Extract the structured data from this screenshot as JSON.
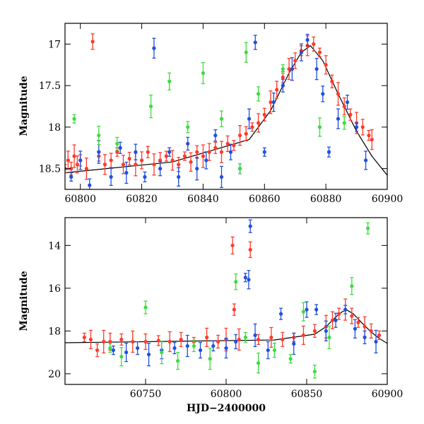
{
  "chart_data": [
    {
      "type": "scatter",
      "title": "",
      "xlabel": "",
      "ylabel": "Magnitude",
      "xlim": [
        60795,
        60900
      ],
      "ylim": [
        18.75,
        16.75
      ],
      "y_inverted": true,
      "x_ticks": [
        60800,
        60820,
        60840,
        60860,
        60880,
        60900
      ],
      "x_tick_labels": [
        "60800",
        "60820",
        "60840",
        "60860",
        "60880",
        "60900"
      ],
      "y_ticks": [
        17,
        17.5,
        18,
        18.5
      ],
      "y_tick_labels": [
        "17",
        "17.5",
        "18",
        "18.5"
      ],
      "grid": false,
      "series": [
        {
          "color": "#ff3a2a",
          "points": [
            [
              60795,
              18.5
            ],
            [
              60796,
              18.4
            ],
            [
              60797,
              18.5
            ],
            [
              60798,
              18.35
            ],
            [
              60799,
              18.45
            ],
            [
              60800,
              18.4
            ],
            [
              60802,
              18.5
            ],
            [
              60804,
              16.97
            ],
            [
              60806,
              18.35
            ],
            [
              60808,
              18.45
            ],
            [
              60810,
              18.4
            ],
            [
              60812,
              18.3
            ],
            [
              60814,
              18.45
            ],
            [
              60816,
              18.38
            ],
            [
              60818,
              18.45
            ],
            [
              60820,
              18.4
            ],
            [
              60822,
              18.3
            ],
            [
              60824,
              18.45
            ],
            [
              60826,
              18.4
            ],
            [
              60828,
              18.35
            ],
            [
              60830,
              18.4
            ],
            [
              60832,
              18.45
            ],
            [
              60834,
              18.35
            ],
            [
              60836,
              18.42
            ],
            [
              60838,
              18.3
            ],
            [
              60840,
              18.35
            ],
            [
              60842,
              18.3
            ],
            [
              60844,
              18.25
            ],
            [
              60846,
              18.3
            ],
            [
              60848,
              18.2
            ],
            [
              60850,
              18.22
            ],
            [
              60852,
              18.1
            ],
            [
              60854,
              18.08
            ],
            [
              60856,
              18.0
            ],
            [
              60858,
              17.95
            ],
            [
              60860,
              17.85
            ],
            [
              60862,
              17.7
            ],
            [
              60864,
              17.55
            ],
            [
              60866,
              17.4
            ],
            [
              60868,
              17.3
            ],
            [
              60870,
              17.2
            ],
            [
              60872,
              17.08
            ],
            [
              60874,
              17.02
            ],
            [
              60876,
              17.0
            ],
            [
              60878,
              17.1
            ],
            [
              60880,
              17.25
            ],
            [
              60882,
              17.45
            ],
            [
              60884,
              17.6
            ],
            [
              60886,
              17.75
            ],
            [
              60888,
              17.85
            ],
            [
              60890,
              17.95
            ],
            [
              60892,
              18.0
            ],
            [
              60894,
              18.1
            ],
            [
              60895,
              18.15
            ]
          ]
        },
        {
          "color": "#1f4fe0",
          "points": [
            [
              60797,
              18.6
            ],
            [
              60800,
              18.4
            ],
            [
              60803,
              18.7
            ],
            [
              60806,
              18.3
            ],
            [
              60810,
              18.6
            ],
            [
              60813,
              18.25
            ],
            [
              60815,
              18.55
            ],
            [
              60818,
              18.3
            ],
            [
              60821,
              18.6
            ],
            [
              60824,
              17.05
            ],
            [
              60826,
              18.5
            ],
            [
              60829,
              18.3
            ],
            [
              60832,
              18.6
            ],
            [
              60835,
              18.2
            ],
            [
              60838,
              18.5
            ],
            [
              60841,
              18.4
            ],
            [
              60844,
              18.1
            ],
            [
              60846,
              18.6
            ],
            [
              60849,
              18.3
            ],
            [
              60852,
              18.5
            ],
            [
              60855,
              17.9
            ],
            [
              60857,
              16.98
            ],
            [
              60860,
              18.3
            ],
            [
              60863,
              17.7
            ],
            [
              60866,
              17.5
            ],
            [
              60869,
              17.3
            ],
            [
              60872,
              17.1
            ],
            [
              60874,
              16.95
            ],
            [
              60877,
              17.3
            ],
            [
              60879,
              17.6
            ],
            [
              60881,
              18.3
            ],
            [
              60884,
              17.9
            ],
            [
              60887,
              17.7
            ],
            [
              60890,
              18.0
            ],
            [
              60893,
              18.4
            ]
          ]
        },
        {
          "color": "#3ddc3d",
          "points": [
            [
              60798,
              17.9
            ],
            [
              60806,
              18.1
            ],
            [
              60812,
              18.2
            ],
            [
              60823,
              17.75
            ],
            [
              60829,
              17.45
            ],
            [
              60835,
              18.0
            ],
            [
              60840,
              17.35
            ],
            [
              60846,
              17.9
            ],
            [
              60852,
              18.5
            ],
            [
              60854,
              17.1
            ],
            [
              60858,
              17.6
            ],
            [
              60866,
              17.3
            ],
            [
              60878,
              18.0
            ],
            [
              60886,
              17.95
            ]
          ]
        }
      ],
      "fit_line": {
        "color": "#000000",
        "points": [
          [
            60795,
            18.55
          ],
          [
            60830,
            18.42
          ],
          [
            60855,
            18.15
          ],
          [
            60862,
            17.8
          ],
          [
            60868,
            17.35
          ],
          [
            60872,
            17.1
          ],
          [
            60875,
            17.02
          ],
          [
            60879,
            17.2
          ],
          [
            60884,
            17.6
          ],
          [
            60890,
            18.05
          ],
          [
            60895,
            18.35
          ],
          [
            60900,
            18.58
          ]
        ]
      }
    },
    {
      "type": "scatter",
      "title": "",
      "xlabel": "HJD−2400000",
      "ylabel": "Magnitude",
      "xlim": [
        60700,
        60900
      ],
      "ylim": [
        20.5,
        12.7
      ],
      "y_inverted": true,
      "x_ticks": [
        60750,
        60800,
        60850,
        60900
      ],
      "x_tick_labels": [
        "60750",
        "60800",
        "60850",
        "60900"
      ],
      "y_ticks": [
        14,
        16,
        18,
        20
      ],
      "y_tick_labels": [
        "14",
        "16",
        "18",
        "20"
      ],
      "grid": false,
      "series": [
        {
          "color": "#ff3a2a",
          "points": [
            [
              60712,
              18.3
            ],
            [
              60716,
              18.4
            ],
            [
              60720,
              18.9
            ],
            [
              60724,
              18.5
            ],
            [
              60728,
              18.5
            ],
            [
              60735,
              18.4
            ],
            [
              60742,
              18.5
            ],
            [
              60750,
              18.5
            ],
            [
              60758,
              18.45
            ],
            [
              60765,
              18.5
            ],
            [
              60772,
              18.4
            ],
            [
              60780,
              18.5
            ],
            [
              60788,
              18.3
            ],
            [
              60795,
              18.5
            ],
            [
              60800,
              18.4
            ],
            [
              60804,
              14.0
            ],
            [
              60805,
              17.0
            ],
            [
              60808,
              18.4
            ],
            [
              60815,
              14.2
            ],
            [
              60820,
              18.4
            ],
            [
              60828,
              18.3
            ],
            [
              60835,
              18.4
            ],
            [
              60842,
              18.3
            ],
            [
              60848,
              18.2
            ],
            [
              60855,
              18.0
            ],
            [
              60862,
              17.8
            ],
            [
              60866,
              17.5
            ],
            [
              60870,
              17.2
            ],
            [
              60874,
              17.0
            ],
            [
              60878,
              17.3
            ],
            [
              60882,
              17.6
            ],
            [
              60886,
              17.8
            ],
            [
              60890,
              18.0
            ],
            [
              60895,
              18.2
            ]
          ]
        },
        {
          "color": "#1f4fe0",
          "points": [
            [
              60730,
              18.9
            ],
            [
              60738,
              19.0
            ],
            [
              60745,
              18.8
            ],
            [
              60752,
              19.1
            ],
            [
              60760,
              18.9
            ],
            [
              60768,
              18.8
            ],
            [
              60776,
              18.7
            ],
            [
              60784,
              18.9
            ],
            [
              60792,
              18.7
            ],
            [
              60800,
              18.8
            ],
            [
              60806,
              18.5
            ],
            [
              60812,
              15.5
            ],
            [
              60814,
              15.6
            ],
            [
              60815,
              13.1
            ],
            [
              60818,
              18.2
            ],
            [
              60826,
              18.9
            ],
            [
              60834,
              17.2
            ],
            [
              60842,
              18.6
            ],
            [
              60850,
              17.0
            ],
            [
              60856,
              17.0
            ],
            [
              60862,
              18.0
            ],
            [
              60868,
              17.5
            ],
            [
              60874,
              17.0
            ],
            [
              60880,
              17.9
            ],
            [
              60886,
              18.3
            ],
            [
              60893,
              18.5
            ]
          ]
        },
        {
          "color": "#3ddc3d",
          "points": [
            [
              60728,
              18.8
            ],
            [
              60735,
              19.2
            ],
            [
              60750,
              16.9
            ],
            [
              60760,
              19.0
            ],
            [
              60770,
              19.4
            ],
            [
              60780,
              18.7
            ],
            [
              60790,
              19.3
            ],
            [
              60806,
              15.7
            ],
            [
              60812,
              18.3
            ],
            [
              60820,
              19.5
            ],
            [
              60830,
              18.9
            ],
            [
              60840,
              19.3
            ],
            [
              60848,
              17.1
            ],
            [
              60855,
              19.9
            ],
            [
              60864,
              18.3
            ],
            [
              60878,
              15.9
            ],
            [
              60888,
              13.2
            ]
          ]
        }
      ],
      "fit_line": {
        "color": "#000000",
        "points": [
          [
            60700,
            18.55
          ],
          [
            60830,
            18.42
          ],
          [
            60855,
            18.15
          ],
          [
            60862,
            17.8
          ],
          [
            60868,
            17.35
          ],
          [
            60872,
            17.1
          ],
          [
            60875,
            17.02
          ],
          [
            60879,
            17.2
          ],
          [
            60884,
            17.6
          ],
          [
            60890,
            18.05
          ],
          [
            60895,
            18.35
          ],
          [
            60900,
            18.58
          ]
        ]
      }
    }
  ]
}
